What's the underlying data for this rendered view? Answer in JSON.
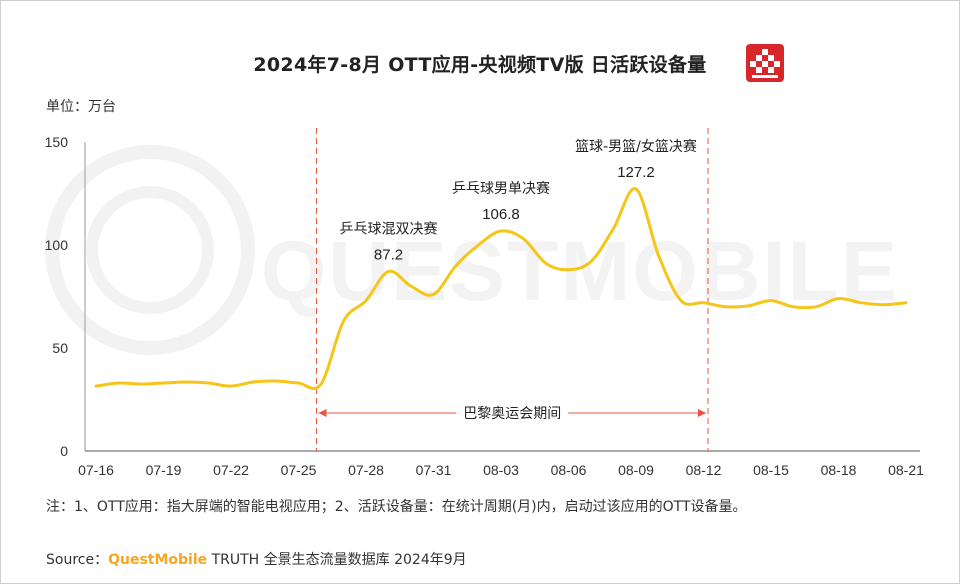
{
  "title": "2024年7-8月 OTT应用-央视频TV版 日活跃设备量",
  "unit_label": "单位：万台",
  "footnote": "注：1、OTT应用：指大屏端的智能电视应用；2、活跃设备量：在统计周期(月)内，启动过该应用的OTT设备量。",
  "source": {
    "prefix": "Source：",
    "brand": "QuestMobile",
    "suffix": " TRUTH 全景生态流量数据库 2024年9月"
  },
  "watermark": "QUESTMOBILE",
  "colors": {
    "line": "#f5c518",
    "marker": "#e8543d",
    "accent": "#d9262b"
  },
  "chart_data": {
    "type": "line",
    "title": "2024年7-8月 OTT应用-央视频TV版 日活跃设备量",
    "ylabel": "单位：万台",
    "ylim": [
      0,
      150
    ],
    "yticks": [
      0,
      50,
      100,
      150
    ],
    "xtick_labels": [
      "07-16",
      "07-19",
      "07-22",
      "07-25",
      "07-28",
      "07-31",
      "08-03",
      "08-06",
      "08-09",
      "08-12",
      "08-15",
      "08-18",
      "08-21"
    ],
    "x": [
      "07-16",
      "07-17",
      "07-18",
      "07-19",
      "07-20",
      "07-21",
      "07-22",
      "07-23",
      "07-24",
      "07-25",
      "07-26",
      "07-27",
      "07-28",
      "07-29",
      "07-30",
      "07-31",
      "08-01",
      "08-02",
      "08-03",
      "08-04",
      "08-05",
      "08-06",
      "08-07",
      "08-08",
      "08-09",
      "08-10",
      "08-11",
      "08-12",
      "08-13",
      "08-14",
      "08-15",
      "08-16",
      "08-17",
      "08-18",
      "08-19",
      "08-20",
      "08-21"
    ],
    "values": [
      31.5,
      33.0,
      32.5,
      33.0,
      33.5,
      33.0,
      31.5,
      33.5,
      34.0,
      33.0,
      32.5,
      63.0,
      73.0,
      87.2,
      80.0,
      76.0,
      90.0,
      100.0,
      106.8,
      103.0,
      91.0,
      88.0,
      92.0,
      108.0,
      127.2,
      95.0,
      73.0,
      72.0,
      70.0,
      70.5,
      73.0,
      70.0,
      70.0,
      74.0,
      72.0,
      71.0,
      72.0
    ],
    "grid": false,
    "annotations": [
      {
        "x": "07-29",
        "label": "乒乓球混双决赛",
        "value_label": "87.2"
      },
      {
        "x": "08-03",
        "label": "乒乓球男单决赛",
        "value_label": "106.8"
      },
      {
        "x": "08-09",
        "label": "篮球-男篮/女篮决赛",
        "value_label": "127.2"
      }
    ],
    "period": {
      "start": "07-26",
      "end": "08-12",
      "label": "巴黎奥运会期间"
    }
  }
}
